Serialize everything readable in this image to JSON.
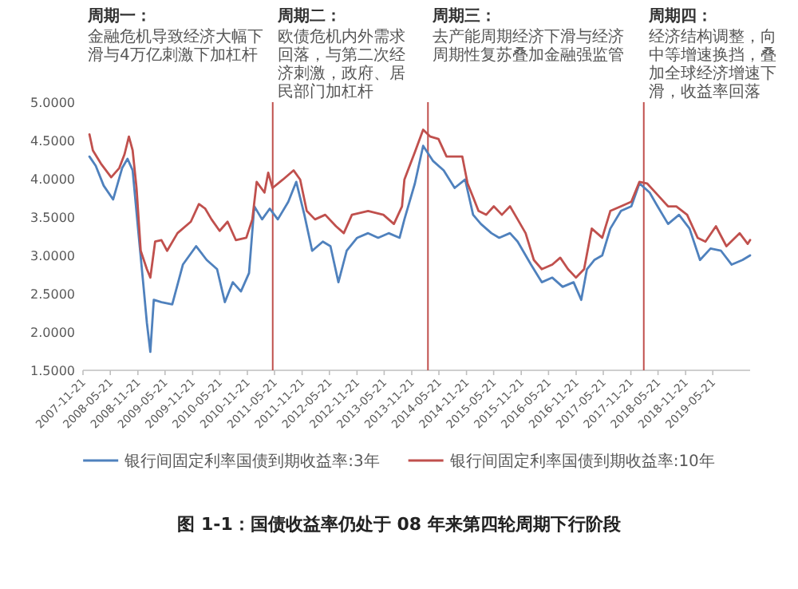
{
  "chart_data": {
    "type": "line",
    "title": "图 1-1：国债收益率仍处于 08 年来第四轮周期下行阶段",
    "xlim": [
      "2007-11-21",
      "2020-01-25"
    ],
    "xticks": [
      "2007-11-21",
      "2008-05-21",
      "2008-11-21",
      "2009-05-21",
      "2009-11-21",
      "2010-05-21",
      "2010-11-21",
      "2011-05-21",
      "2011-11-21",
      "2012-05-21",
      "2012-11-21",
      "2013-05-21",
      "2013-11-21",
      "2014-05-21",
      "2014-11-21",
      "2015-05-21",
      "2015-11-21",
      "2016-05-21",
      "2016-11-21",
      "2017-05-21",
      "2017-11-21",
      "2018-05-21",
      "2018-11-21",
      "2019-05-21"
    ],
    "ylim": [
      1.5,
      5
    ],
    "yticks": [
      {
        "value": 1.5,
        "label": "1.5000"
      },
      {
        "value": 2,
        "label": "2.0000"
      },
      {
        "value": 2.5,
        "label": "2.5000"
      },
      {
        "value": 3,
        "label": "3.0000"
      },
      {
        "value": 3.5,
        "label": "3.5000"
      },
      {
        "value": 4,
        "label": "4.0000"
      },
      {
        "value": 4.5,
        "label": "4.5000"
      },
      {
        "value": 5,
        "label": "5.0000"
      }
    ],
    "legend": "bottom",
    "ref_lines": [
      {
        "axis": "x",
        "value": "2011-05-09",
        "color": "#c0504d"
      },
      {
        "axis": "x",
        "value": "2014-03-09",
        "color": "#c0504d"
      },
      {
        "axis": "x",
        "value": "2018-02-15",
        "color": "#c0504d"
      }
    ],
    "annotations": [
      "周期一：",
      "金融危机导致经济大幅下滑与4万亿刺激下加杠杆",
      "周期二：",
      "欧债危机内外需求回落，与第二次经济刺激，政府、居民部门加杠杆",
      "周期三：",
      "去产能周期经济下滑与经济周期性复苏叠加金融强监管",
      "周期四：",
      "经济结构调整，向中等增速换挡，叠加全球经济增速下滑，收益率回落"
    ],
    "series": [
      {
        "name": "银行间固定利率国债到期收益率:3年",
        "color": "#4f81bd",
        "x": [
          "2008-01-03",
          "2008-02-14",
          "2008-04-07",
          "2008-06-09",
          "2008-08-08",
          "2008-09-13",
          "2008-10-17",
          "2008-11-22",
          "2008-12-26",
          "2009-01-20",
          "2009-02-12",
          "2009-03-07",
          "2009-04-27",
          "2009-07-08",
          "2009-09-17",
          "2009-12-14",
          "2010-02-23",
          "2010-05-03",
          "2010-06-24",
          "2010-08-16",
          "2010-10-09",
          "2010-12-02",
          "2011-01-06",
          "2011-02-27",
          "2011-04-19",
          "2011-06-12",
          "2011-08-21",
          "2011-10-13",
          "2011-12-06",
          "2012-01-27",
          "2012-04-07",
          "2012-05-28",
          "2012-07-20",
          "2012-09-13",
          "2012-11-22",
          "2013-02-03",
          "2013-04-11",
          "2013-06-20",
          "2013-09-01",
          "2013-10-03",
          "2013-12-12",
          "2014-02-05",
          "2014-04-13",
          "2014-06-22",
          "2014-09-03",
          "2014-11-12",
          "2015-01-04",
          "2015-02-25",
          "2015-05-06",
          "2015-06-27",
          "2015-09-07",
          "2015-10-28",
          "2016-01-25",
          "2016-04-06",
          "2016-06-15",
          "2016-08-23",
          "2016-11-04",
          "2016-12-25",
          "2017-02-01",
          "2017-03-22",
          "2017-05-14",
          "2017-07-07",
          "2017-09-16",
          "2017-11-24",
          "2018-01-17",
          "2018-03-26",
          "2018-05-18",
          "2018-07-27",
          "2018-10-08",
          "2018-12-17",
          "2019-02-25",
          "2019-05-06",
          "2019-07-15",
          "2019-09-24",
          "2019-12-05",
          "2020-01-25"
        ],
        "values": [
          4.29,
          4.17,
          3.91,
          3.73,
          4.14,
          4.26,
          4.11,
          3.35,
          2.65,
          2.12,
          1.74,
          2.42,
          2.39,
          2.36,
          2.88,
          3.12,
          2.94,
          2.82,
          2.39,
          2.65,
          2.53,
          2.77,
          3.64,
          3.47,
          3.61,
          3.47,
          3.7,
          3.96,
          3.53,
          3.06,
          3.18,
          3.12,
          2.65,
          3.06,
          3.23,
          3.29,
          3.23,
          3.29,
          3.23,
          3.47,
          3.94,
          4.43,
          4.23,
          4.11,
          3.88,
          3.99,
          3.53,
          3.41,
          3.29,
          3.23,
          3.29,
          3.18,
          2.88,
          2.65,
          2.71,
          2.59,
          2.65,
          2.42,
          2.82,
          2.94,
          3.0,
          3.35,
          3.58,
          3.64,
          3.94,
          3.82,
          3.64,
          3.41,
          3.53,
          3.35,
          2.94,
          3.09,
          3.06,
          2.88,
          2.94,
          3.0
        ]
      },
      {
        "name": "银行间固定利率国债到期收益率:10年",
        "color": "#c0504d",
        "x": [
          "2008-01-03",
          "2008-01-26",
          "2008-03-19",
          "2008-05-27",
          "2008-07-20",
          "2008-08-24",
          "2008-09-22",
          "2008-10-17",
          "2008-11-12",
          "2008-12-10",
          "2009-01-20",
          "2009-02-12",
          "2009-03-16",
          "2009-04-27",
          "2009-06-04",
          "2009-08-12",
          "2009-11-09",
          "2010-01-02",
          "2010-02-13",
          "2010-03-27",
          "2010-05-20",
          "2010-07-12",
          "2010-09-05",
          "2010-11-14",
          "2010-12-24",
          "2011-01-22",
          "2011-03-15",
          "2011-04-09",
          "2011-05-08",
          "2011-07-16",
          "2011-09-25",
          "2011-11-08",
          "2011-12-22",
          "2012-02-15",
          "2012-04-23",
          "2012-07-04",
          "2012-08-25",
          "2012-10-18",
          "2013-02-03",
          "2013-05-16",
          "2013-07-25",
          "2013-09-17",
          "2013-10-03",
          "2013-12-12",
          "2014-02-05",
          "2014-03-25",
          "2014-05-18",
          "2014-07-11",
          "2014-09-03",
          "2014-10-24",
          "2014-11-28",
          "2015-01-04",
          "2015-02-09",
          "2015-04-01",
          "2015-05-22",
          "2015-07-15",
          "2015-09-07",
          "2015-10-28",
          "2015-12-20",
          "2016-02-13",
          "2016-04-06",
          "2016-06-15",
          "2016-08-07",
          "2016-09-28",
          "2016-11-20",
          "2017-01-13",
          "2017-03-05",
          "2017-05-14",
          "2017-07-07",
          "2017-09-16",
          "2017-11-24",
          "2018-01-17",
          "2018-03-09",
          "2018-05-18",
          "2018-07-27",
          "2018-09-20",
          "2018-12-01",
          "2019-02-09",
          "2019-04-02",
          "2019-06-11",
          "2019-08-20",
          "2019-11-16",
          "2020-01-09",
          "2020-01-25"
        ],
        "values": [
          4.58,
          4.37,
          4.2,
          4.02,
          4.14,
          4.32,
          4.55,
          4.37,
          3.88,
          3.06,
          2.82,
          2.71,
          3.18,
          3.2,
          3.06,
          3.29,
          3.44,
          3.67,
          3.61,
          3.47,
          3.32,
          3.44,
          3.2,
          3.23,
          3.47,
          3.96,
          3.82,
          4.08,
          3.88,
          3.99,
          4.11,
          3.99,
          3.58,
          3.47,
          3.53,
          3.38,
          3.29,
          3.53,
          3.58,
          3.53,
          3.41,
          3.64,
          3.99,
          4.35,
          4.64,
          4.55,
          4.52,
          4.29,
          4.29,
          4.29,
          3.94,
          3.76,
          3.58,
          3.53,
          3.64,
          3.53,
          3.64,
          3.47,
          3.29,
          2.94,
          2.82,
          2.88,
          2.97,
          2.82,
          2.71,
          2.82,
          3.35,
          3.23,
          3.58,
          3.64,
          3.7,
          3.96,
          3.94,
          3.79,
          3.64,
          3.64,
          3.53,
          3.23,
          3.18,
          3.38,
          3.12,
          3.29,
          3.15,
          3.2
        ]
      }
    ]
  }
}
